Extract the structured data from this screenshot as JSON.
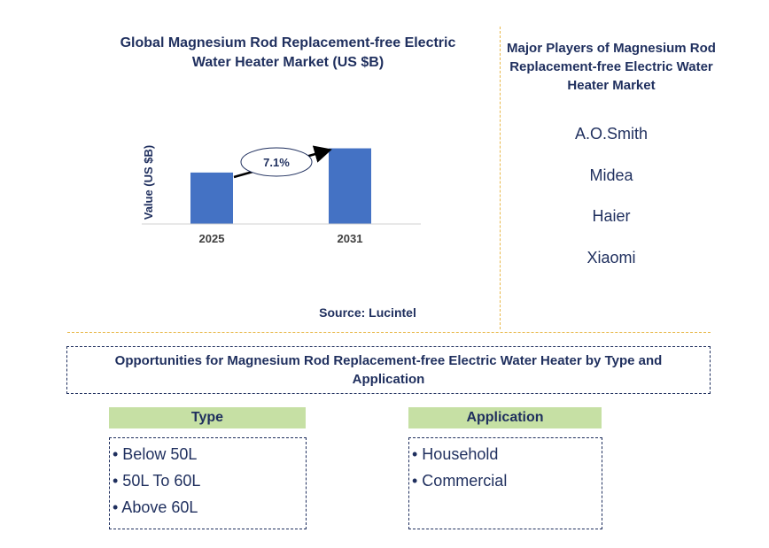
{
  "chart_title": "Global Magnesium Rod Replacement-free Electric Water Heater Market (US $B)",
  "chart_data": {
    "type": "bar",
    "title": "Global Magnesium Rod Replacement-free Electric Water Heater Market (US $B)",
    "categories": [
      "2025",
      "2031"
    ],
    "values": [
      0.68,
      1.0
    ],
    "ylabel": "Value (US $B)",
    "xlabel": "",
    "ylim": [
      0,
      1.1
    ],
    "annotation": "7.1%",
    "bar_color": "#4472c4"
  },
  "source": "Source: Lucintel",
  "players": {
    "title": "Major Players of Magnesium Rod Replacement-free Electric Water Heater Market",
    "items": [
      "A.O.Smith",
      "Midea",
      "Haier",
      "Xiaomi"
    ]
  },
  "opportunities_title": "Opportunities for Magnesium Rod Replacement-free Electric Water Heater by Type and Application",
  "type": {
    "header": "Type",
    "items": [
      "• Below 50L",
      "• 50L To 60L",
      "• Above 60L"
    ]
  },
  "application": {
    "header": "Application",
    "items": [
      "• Household",
      "• Commercial"
    ]
  },
  "colors": {
    "title": "#1f2f5e",
    "bar": "#4472c4",
    "segment_header": "#c6e0a4",
    "divider": "#e8b84a"
  }
}
